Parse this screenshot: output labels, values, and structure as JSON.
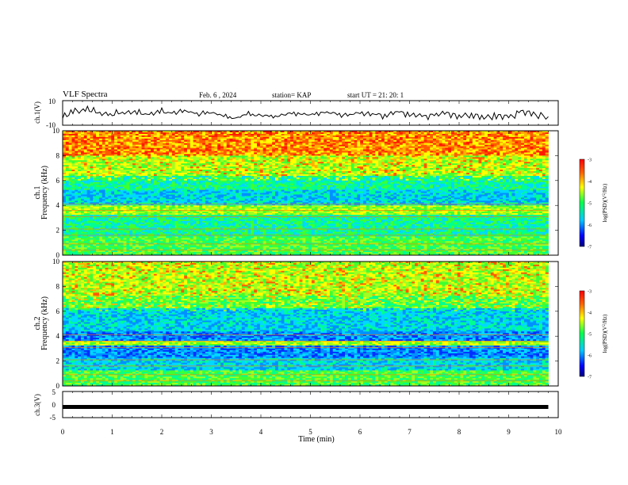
{
  "header": {
    "title": "VLF Spectra",
    "date": "Feb. 6 , 2024",
    "station": "station= KAP",
    "start": "start  UT =   21: 20: 1"
  },
  "chart_data": [
    {
      "type": "line",
      "title": "",
      "ylabel": "ch.1(V)",
      "ylim": [
        -10,
        10
      ],
      "yticks": [
        "10",
        "-10"
      ],
      "xlim": [
        0,
        10
      ],
      "series": [
        {
          "x": [
            0,
            0.25,
            0.5,
            0.75,
            1,
            1.25,
            1.5,
            1.75,
            2,
            2.25,
            2.5,
            2.75,
            3,
            3.25,
            3.5,
            3.75,
            4,
            4.25,
            4.5,
            4.75,
            5,
            5.25,
            5.5,
            5.75,
            6,
            6.25,
            6.5,
            6.75,
            7,
            7.25,
            7.5,
            7.75,
            8,
            8.25,
            8.5,
            8.75,
            9,
            9.25,
            9.5,
            9.8
          ],
          "y": [
            -3,
            1,
            3,
            0,
            -1,
            1,
            0,
            -1,
            1,
            0,
            2,
            -1,
            1,
            -3,
            -4,
            -1,
            -2,
            -3,
            -1,
            0,
            -2,
            1,
            -1,
            -2,
            0,
            -1,
            -2,
            1,
            -1,
            -3,
            -2,
            0,
            -3,
            -1,
            -4,
            -2,
            -4,
            1,
            -1,
            -3
          ]
        }
      ]
    },
    {
      "type": "heatmap",
      "title": "",
      "ylabel": "ch.1\nFrequency (kHz)",
      "ylim": [
        0,
        10
      ],
      "yticks": [
        "0",
        "2",
        "4",
        "6",
        "8",
        "10"
      ],
      "xlim": [
        0,
        9.8
      ],
      "colorbar": {
        "label": "log(PSD)(V^2/Hz)",
        "range": [
          -7,
          -3
        ],
        "ticks": [
          "-3",
          "-4",
          "-5",
          "-6",
          "-7"
        ]
      }
    },
    {
      "type": "heatmap",
      "title": "",
      "ylabel": "ch.2\nFrequency (kHz)",
      "ylim": [
        0,
        10
      ],
      "yticks": [
        "0",
        "2",
        "4",
        "6",
        "8",
        "10"
      ],
      "xlim": [
        0,
        9.8
      ],
      "colorbar": {
        "label": "log(PSD)(V^2/Hz)",
        "range": [
          -7,
          -3
        ],
        "ticks": [
          "-3",
          "-4",
          "-5",
          "-6",
          "-7"
        ]
      }
    },
    {
      "type": "line",
      "title": "",
      "ylabel": "ch.3(V)",
      "ylim": [
        -5,
        5
      ],
      "yticks": [
        "5",
        "0",
        "-5"
      ],
      "xlim": [
        0,
        10
      ],
      "xlabel": "Time (min)",
      "xticks": [
        "0",
        "1",
        "2",
        "3",
        "4",
        "5",
        "6",
        "7",
        "8",
        "9",
        "10"
      ],
      "series": [
        {
          "x": [
            0,
            9.8
          ],
          "y": [
            -0.9,
            -0.9
          ]
        }
      ]
    }
  ]
}
